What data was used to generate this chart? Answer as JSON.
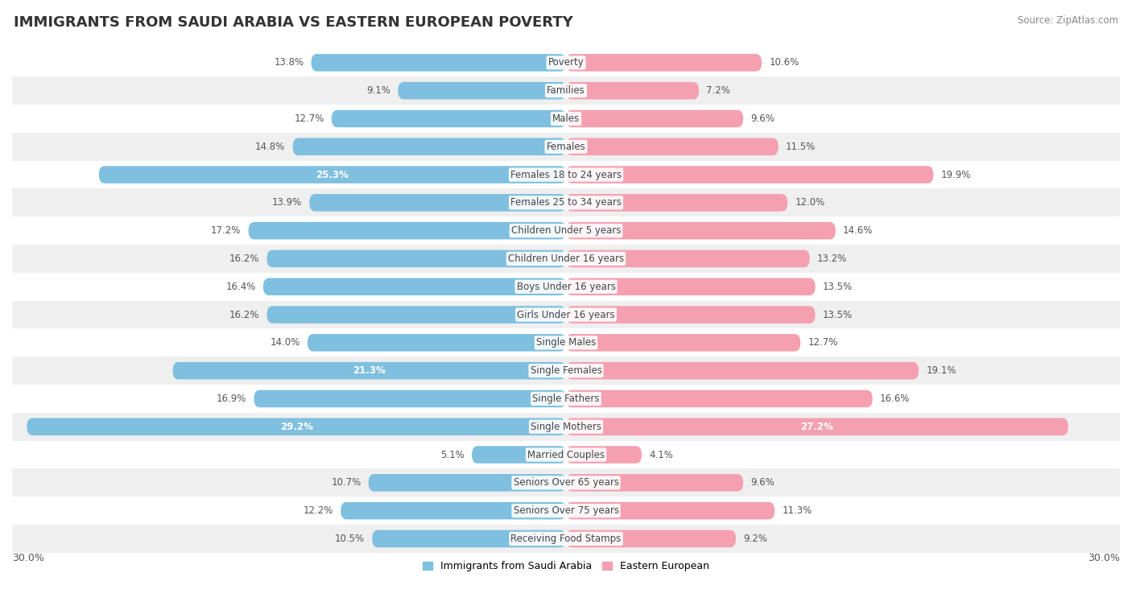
{
  "title": "IMMIGRANTS FROM SAUDI ARABIA VS EASTERN EUROPEAN POVERTY",
  "source": "Source: ZipAtlas.com",
  "categories": [
    "Poverty",
    "Families",
    "Males",
    "Females",
    "Females 18 to 24 years",
    "Females 25 to 34 years",
    "Children Under 5 years",
    "Children Under 16 years",
    "Boys Under 16 years",
    "Girls Under 16 years",
    "Single Males",
    "Single Females",
    "Single Fathers",
    "Single Mothers",
    "Married Couples",
    "Seniors Over 65 years",
    "Seniors Over 75 years",
    "Receiving Food Stamps"
  ],
  "saudi_values": [
    13.8,
    9.1,
    12.7,
    14.8,
    25.3,
    13.9,
    17.2,
    16.2,
    16.4,
    16.2,
    14.0,
    21.3,
    16.9,
    29.2,
    5.1,
    10.7,
    12.2,
    10.5
  ],
  "eastern_values": [
    10.6,
    7.2,
    9.6,
    11.5,
    19.9,
    12.0,
    14.6,
    13.2,
    13.5,
    13.5,
    12.7,
    19.1,
    16.6,
    27.2,
    4.1,
    9.6,
    11.3,
    9.2
  ],
  "saudi_color": "#7fbfdf",
  "eastern_color": "#f4a0b0",
  "saudi_label": "Immigrants from Saudi Arabia",
  "eastern_label": "Eastern European",
  "x_max": 30.0,
  "bar_height": 0.62,
  "row_colors": [
    "#ffffff",
    "#efefef"
  ],
  "title_fontsize": 13,
  "label_fontsize": 8.5,
  "value_fontsize": 8.5
}
